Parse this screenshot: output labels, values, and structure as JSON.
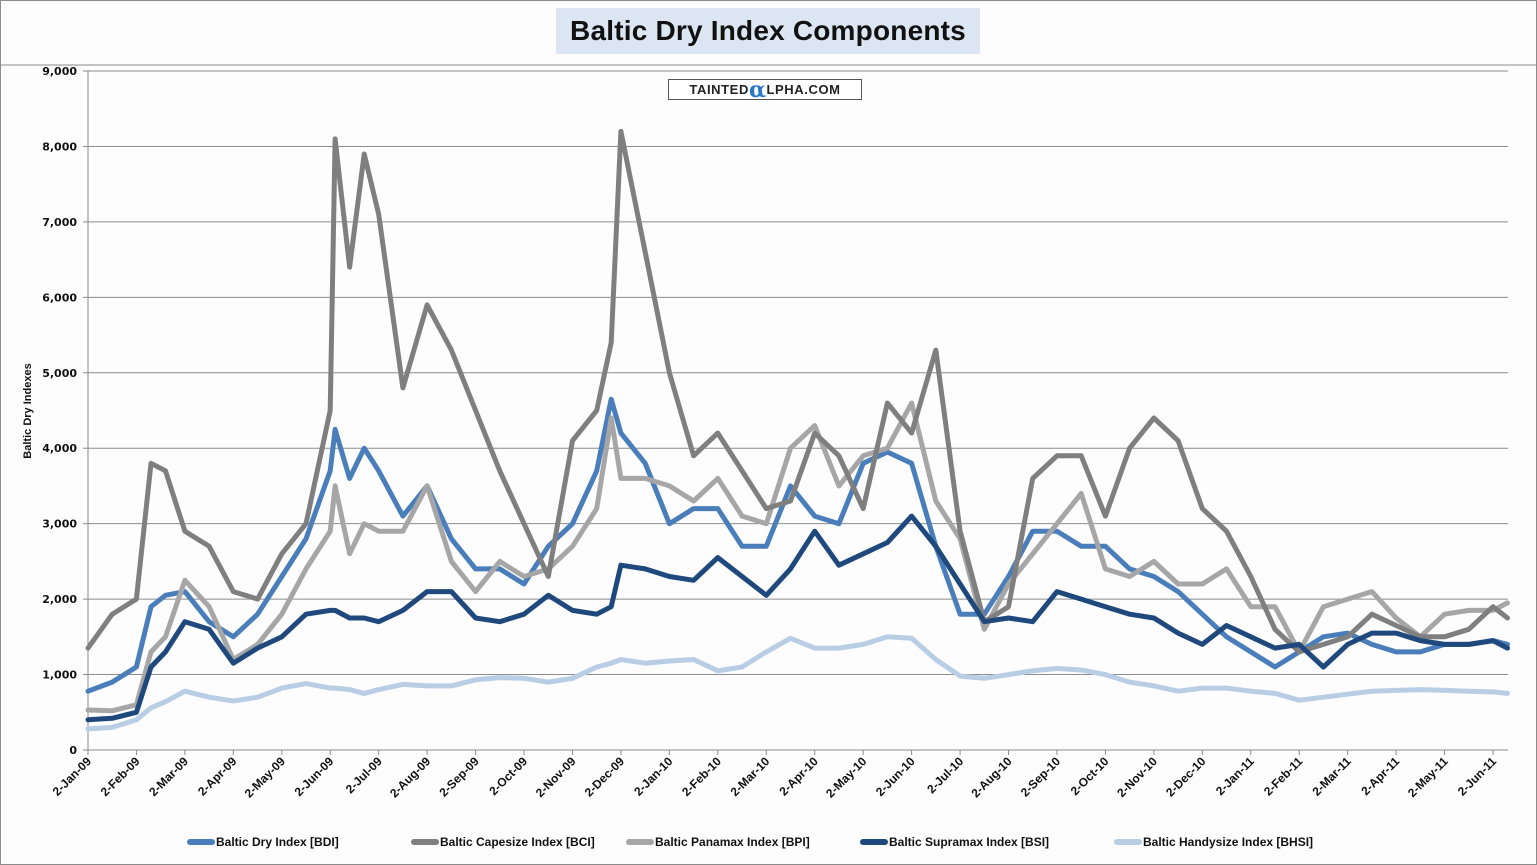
{
  "chart_data": {
    "type": "line",
    "title": "Baltic Dry Index Components",
    "watermark": "TAINTEDαLPHA.COM",
    "xlabel": "",
    "ylabel": "Baltic Dry Indexes",
    "ylim": [
      0,
      9000
    ],
    "yticks": [
      0,
      1000,
      2000,
      3000,
      4000,
      5000,
      6000,
      7000,
      8000,
      9000
    ],
    "ytick_labels": [
      "0",
      "1,000",
      "2,000",
      "3,000",
      "4,000",
      "5,000",
      "6,000",
      "7,000",
      "8,000",
      "9,000"
    ],
    "xtick_labels": [
      "2-Jan-09",
      "2-Feb-09",
      "2-Mar-09",
      "2-Apr-09",
      "2-May-09",
      "2-Jun-09",
      "2-Jul-09",
      "2-Aug-09",
      "2-Sep-09",
      "2-Oct-09",
      "2-Nov-09",
      "2-Dec-09",
      "2-Jan-10",
      "2-Feb-10",
      "2-Mar-10",
      "2-Apr-10",
      "2-May-10",
      "2-Jun-10",
      "2-Jul-10",
      "2-Aug-10",
      "2-Sep-10",
      "2-Oct-10",
      "2-Nov-10",
      "2-Dec-10",
      "2-Jan-11",
      "2-Feb-11",
      "2-Mar-11",
      "2-Apr-11",
      "2-May-11",
      "2-Jun-11"
    ],
    "x_unit": "months since 2-Jan-09",
    "x": [
      0,
      0.5,
      1,
      1.3,
      1.6,
      2,
      2.5,
      3,
      3.5,
      4,
      4.5,
      5,
      5.1,
      5.4,
      5.7,
      6,
      6.5,
      7,
      7.5,
      8,
      8.5,
      9,
      9.5,
      10,
      10.5,
      10.8,
      11,
      11.5,
      12,
      12.5,
      13,
      13.5,
      14,
      14.5,
      15,
      15.5,
      16,
      16.5,
      17,
      17.5,
      18,
      18.5,
      19,
      19.5,
      20,
      20.5,
      21,
      21.5,
      22,
      22.5,
      23,
      23.5,
      24,
      24.5,
      25,
      25.5,
      26,
      26.5,
      27,
      27.5,
      28,
      28.5,
      29,
      29.3
    ],
    "legend_position": "bottom",
    "grid": true,
    "series": [
      {
        "name": "Baltic Dry Index [BDI]",
        "color": "#4a7ebb",
        "values": [
          780,
          900,
          1100,
          1900,
          2050,
          2100,
          1700,
          1500,
          1800,
          2300,
          2800,
          3700,
          4250,
          3600,
          4000,
          3700,
          3100,
          3500,
          2800,
          2400,
          2400,
          2200,
          2700,
          3000,
          3700,
          4650,
          4200,
          3800,
          3000,
          3200,
          3200,
          2700,
          2700,
          3500,
          3100,
          3000,
          3800,
          3950,
          3800,
          2700,
          1800,
          1800,
          2300,
          2900,
          2900,
          2700,
          2700,
          2400,
          2300,
          2100,
          1800,
          1500,
          1300,
          1100,
          1300,
          1500,
          1550,
          1400,
          1300,
          1300,
          1400,
          1400,
          1450,
          1400
        ]
      },
      {
        "name": "Baltic Capesize Index [BCI]",
        "color": "#7f7f7f",
        "values": [
          1350,
          1800,
          2000,
          3800,
          3700,
          2900,
          2700,
          2100,
          2000,
          2600,
          3000,
          4500,
          8100,
          6400,
          7900,
          7100,
          4800,
          5900,
          5300,
          4500,
          3700,
          3000,
          2300,
          4100,
          4500,
          5400,
          8200,
          6600,
          5000,
          3900,
          4200,
          3700,
          3200,
          3300,
          4200,
          3900,
          3200,
          4600,
          4200,
          5300,
          2900,
          1700,
          1900,
          3600,
          3900,
          3900,
          3100,
          4000,
          4400,
          4100,
          3200,
          2900,
          2300,
          1600,
          1300,
          1400,
          1500,
          1800,
          1650,
          1500,
          1500,
          1600,
          1900,
          1750
        ]
      },
      {
        "name": "Baltic Panamax Index [BPI]",
        "color": "#a6a6a6",
        "values": [
          530,
          520,
          600,
          1300,
          1500,
          2250,
          1900,
          1200,
          1400,
          1800,
          2400,
          2900,
          3500,
          2600,
          3000,
          2900,
          2900,
          3500,
          2500,
          2100,
          2500,
          2300,
          2400,
          2700,
          3200,
          4400,
          3600,
          3600,
          3500,
          3300,
          3600,
          3100,
          3000,
          4000,
          4300,
          3500,
          3900,
          4000,
          4600,
          3300,
          2800,
          1600,
          2200,
          2600,
          3000,
          3400,
          2400,
          2300,
          2500,
          2200,
          2200,
          2400,
          1900,
          1900,
          1300,
          1900,
          2000,
          2100,
          1750,
          1500,
          1800,
          1850,
          1850,
          1950
        ]
      },
      {
        "name": "Baltic Supramax Index [BSI]",
        "color": "#1f497d",
        "values": [
          400,
          420,
          500,
          1100,
          1300,
          1700,
          1600,
          1150,
          1350,
          1500,
          1800,
          1850,
          1850,
          1750,
          1750,
          1700,
          1850,
          2100,
          2100,
          1750,
          1700,
          1800,
          2050,
          1850,
          1800,
          1900,
          2450,
          2400,
          2300,
          2250,
          2550,
          2300,
          2050,
          2400,
          2900,
          2450,
          2600,
          2750,
          3100,
          2700,
          2200,
          1700,
          1750,
          1700,
          2100,
          2000,
          1900,
          1800,
          1750,
          1550,
          1400,
          1650,
          1500,
          1350,
          1400,
          1100,
          1400,
          1550,
          1550,
          1450,
          1400,
          1400,
          1450,
          1350
        ]
      },
      {
        "name": "Baltic Handysize Index [BHSI]",
        "color": "#b9cde5",
        "values": [
          280,
          300,
          400,
          560,
          640,
          780,
          700,
          650,
          700,
          820,
          880,
          820,
          820,
          800,
          750,
          800,
          870,
          850,
          850,
          930,
          960,
          950,
          900,
          950,
          1100,
          1150,
          1200,
          1150,
          1180,
          1200,
          1050,
          1100,
          1300,
          1480,
          1350,
          1350,
          1400,
          1500,
          1480,
          1200,
          980,
          950,
          1000,
          1050,
          1080,
          1060,
          1000,
          900,
          850,
          780,
          820,
          820,
          780,
          750,
          660,
          700,
          740,
          780,
          790,
          800,
          790,
          780,
          770,
          750
        ]
      }
    ]
  }
}
